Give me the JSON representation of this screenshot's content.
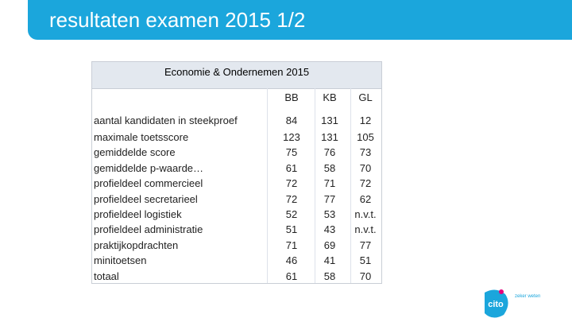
{
  "header": {
    "title": "resultaten examen 2015 1/2"
  },
  "table": {
    "caption": "Economie & Ondernemen 2015",
    "columns": [
      "BB",
      "KB",
      "GL"
    ],
    "rows": [
      [
        "aantal kandidaten in steekproef",
        84,
        131,
        12
      ],
      [
        "maximale toetsscore",
        123,
        131,
        105
      ],
      [
        "gemiddelde score",
        75,
        76,
        73
      ],
      [
        "gemiddelde p-waarde…",
        61,
        58,
        70
      ],
      [
        "profieldeel commercieel",
        72,
        71,
        72
      ],
      [
        "profieldeel secretarieel",
        72,
        77,
        62
      ],
      [
        "profieldeel logistiek",
        52,
        53,
        "n.v.t."
      ],
      [
        "profieldeel administratie",
        51,
        43,
        "n.v.t."
      ],
      [
        "praktijkopdrachten",
        71,
        69,
        77
      ],
      [
        "minitoetsen",
        46,
        41,
        51
      ],
      [
        "totaal",
        61,
        58,
        70
      ]
    ]
  },
  "logo": {
    "name": "cito",
    "tagline": "zeker weten"
  }
}
